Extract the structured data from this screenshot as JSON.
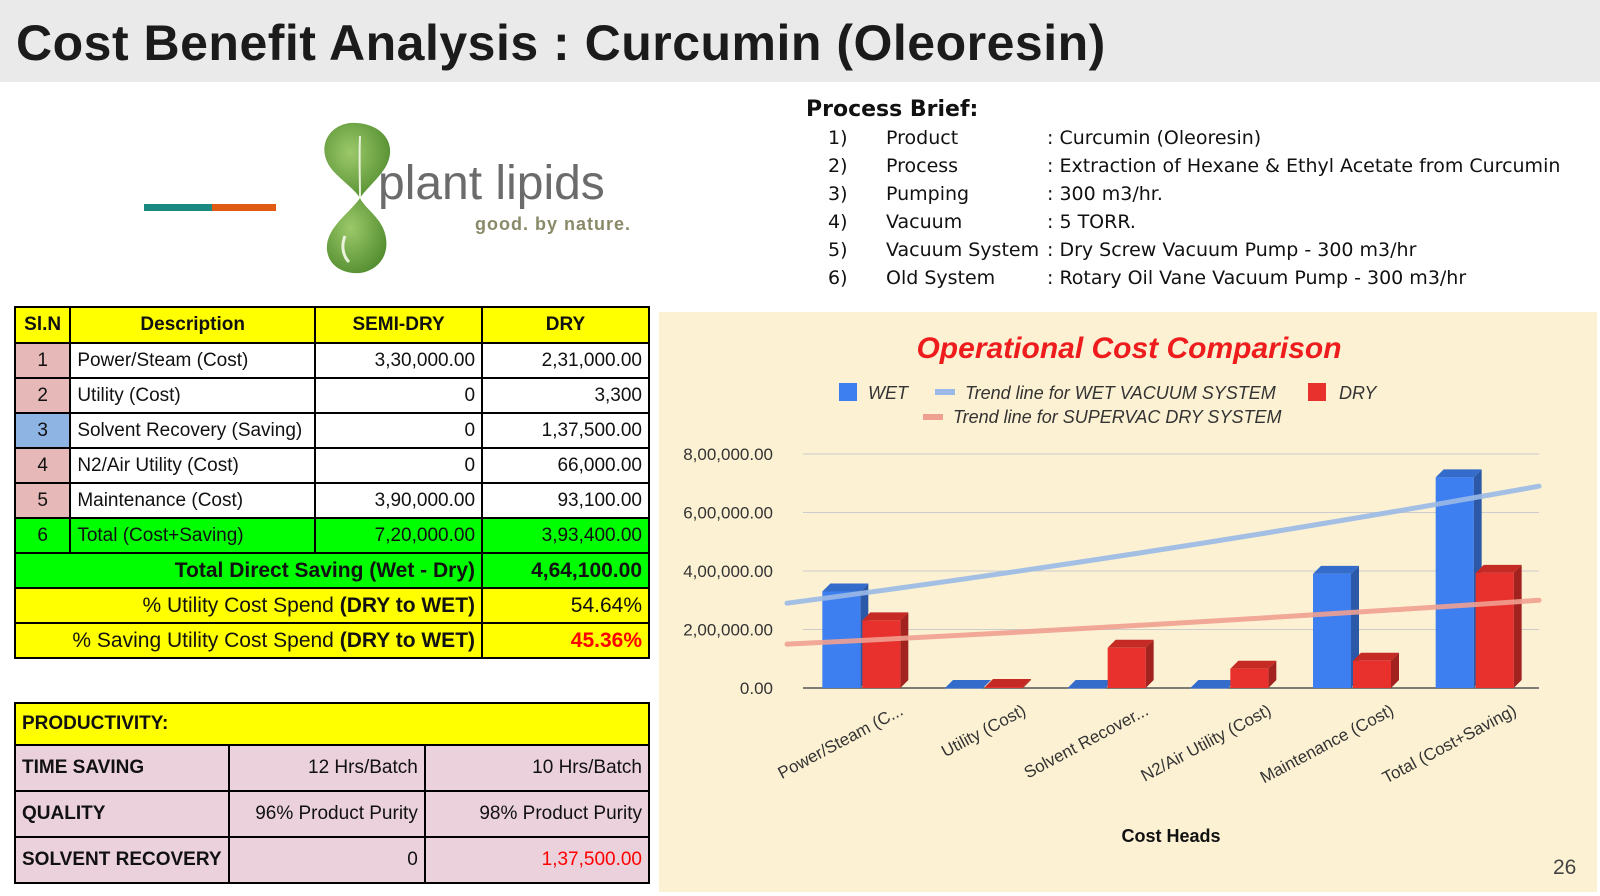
{
  "title": "Cost Benefit Analysis : Curcumin (Oleoresin)",
  "logo": {
    "word": "plant lipids",
    "tagline": "good. by nature."
  },
  "brief": {
    "heading": "Process Brief:",
    "items": [
      {
        "num": "1)",
        "key": "Product",
        "value": ": Curcumin (Oleoresin)"
      },
      {
        "num": "2)",
        "key": "Process",
        "value": ": Extraction of Hexane & Ethyl Acetate from Curcumin"
      },
      {
        "num": "3)",
        "key": "Pumping",
        "value": ": 300 m3/hr."
      },
      {
        "num": "4)",
        "key": "Vacuum",
        "value": ": 5 TORR."
      },
      {
        "num": "5)",
        "key": "Vacuum System",
        "value": ": Dry Screw Vacuum Pump - 300 m3/hr"
      },
      {
        "num": "6)",
        "key": "Old System",
        "value": ": Rotary Oil Vane Vacuum Pump - 300 m3/hr"
      }
    ]
  },
  "cost_table": {
    "headers": [
      "Sl.N",
      "Description",
      "SEMI-DRY",
      "DRY"
    ],
    "rows": [
      {
        "sl": "1",
        "desc": "Power/Steam (Cost)",
        "semi": "3,30,000.00",
        "dry": "2,31,000.00"
      },
      {
        "sl": "2",
        "desc": "Utility (Cost)",
        "semi": "0",
        "dry": "3,300"
      },
      {
        "sl": "3",
        "desc": "Solvent Recovery (Saving)",
        "semi": "0",
        "dry": "1,37,500.00"
      },
      {
        "sl": "4",
        "desc": "N2/Air Utility (Cost)",
        "semi": "0",
        "dry": "66,000.00"
      },
      {
        "sl": "5",
        "desc": "Maintenance (Cost)",
        "semi": "3,90,000.00",
        "dry": "93,100.00"
      }
    ],
    "total": {
      "sl": "6",
      "desc": "Total (Cost+Saving)",
      "semi": "7,20,000.00",
      "dry": "3,93,400.00"
    },
    "direct_saving": {
      "label": "Total Direct Saving (Wet - Dry)",
      "value": "4,64,100.00"
    },
    "utility_spend": {
      "label_a": "% Utility Cost Spend ",
      "label_b": "(DRY to WET)",
      "value": "54.64%"
    },
    "saving_spend": {
      "label_a": "% Saving Utility Cost Spend ",
      "label_b": "(DRY to WET)",
      "value": "45.36%"
    }
  },
  "productivity": {
    "heading": "PRODUCTIVITY:",
    "rows": [
      {
        "label": "TIME SAVING",
        "semi": "12 Hrs/Batch",
        "dry": "10 Hrs/Batch"
      },
      {
        "label": "QUALITY",
        "semi": "96% Product Purity",
        "dry": "98% Product Purity"
      },
      {
        "label": "SOLVENT RECOVERY",
        "semi": "0",
        "dry": "1,37,500.00"
      }
    ]
  },
  "page_number": "26",
  "chart_data": {
    "type": "bar",
    "title": "Operational Cost Comparison",
    "xlabel": "Cost Heads",
    "ylabel": "",
    "categories": [
      "Power/Steam (C...",
      "Utility (Cost)",
      "Solvent Recover...",
      "N2/Air Utility (Cost)",
      "Maintenance (Cost)",
      "Total (Cost+Saving)"
    ],
    "series": [
      {
        "name": "WET",
        "color": "#3d7ff0",
        "values": [
          330000,
          0,
          0,
          0,
          390000,
          720000
        ]
      },
      {
        "name": "DRY",
        "color": "#e8312c",
        "values": [
          231000,
          3300,
          137500,
          66000,
          93100,
          393400
        ]
      }
    ],
    "trendlines": [
      {
        "name": "Trend line for WET VACUUM SYSTEM",
        "color": "#9ab9e6",
        "start": 290000,
        "end": 690000
      },
      {
        "name": "Trend line for SUPERVAC DRY SYSTEM",
        "color": "#f0a090",
        "start": 150000,
        "end": 300000
      }
    ],
    "yticks": [
      "0.00",
      "2,00,000.00",
      "4,00,000.00",
      "6,00,000.00",
      "8,00,000.00"
    ],
    "ylim": [
      0,
      800000
    ],
    "grid": true,
    "legend_position": "top"
  }
}
